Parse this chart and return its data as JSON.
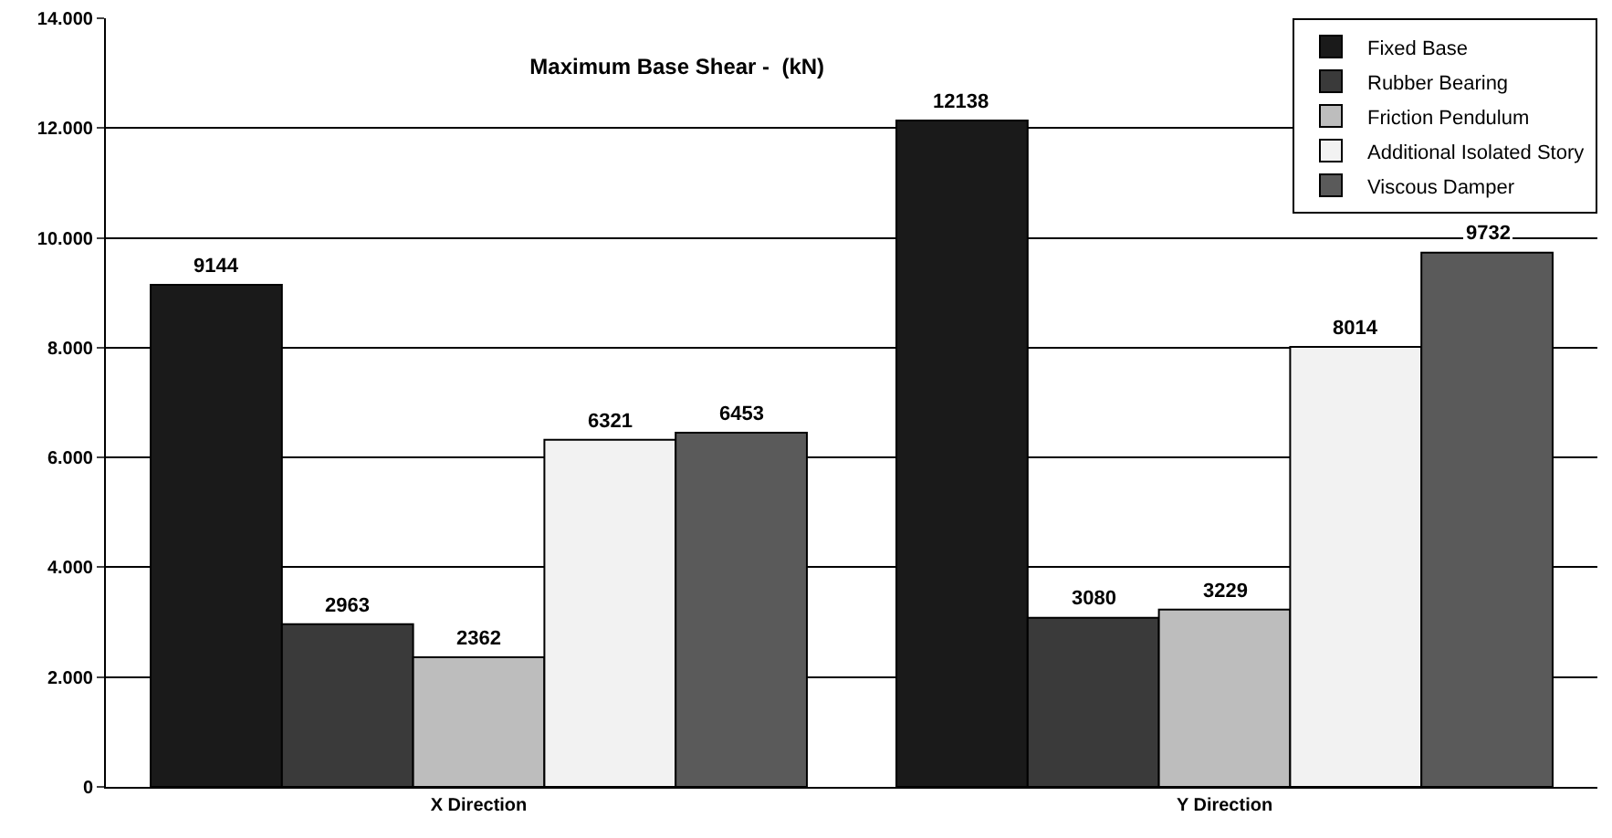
{
  "chart_data": {
    "type": "bar",
    "title": "Maximum Base Shear -  (kN)",
    "categories": [
      "X Direction",
      "Y Direction"
    ],
    "series": [
      {
        "name": "Fixed Base",
        "color": "#1a1a1a",
        "values": [
          9144,
          12138
        ]
      },
      {
        "name": "Rubber Bearing",
        "color": "#3a3a3a",
        "values": [
          2963,
          3080
        ]
      },
      {
        "name": "Friction Pendulum",
        "color": "#bdbdbd",
        "values": [
          2362,
          3229
        ]
      },
      {
        "name": "Additional Isolated Story",
        "color": "#f2f2f2",
        "values": [
          6321,
          8014
        ]
      },
      {
        "name": "Viscous Damper",
        "color": "#5a5a5a",
        "values": [
          6453,
          9732
        ]
      }
    ],
    "ylim": [
      0,
      14000
    ],
    "yticks": [
      0,
      {
        "value": 2000,
        "label": "2.000"
      },
      {
        "value": 4000,
        "label": "4.000"
      },
      {
        "value": 6000,
        "label": "6.000"
      },
      {
        "value": 8000,
        "label": "8.000"
      },
      {
        "value": 10000,
        "label": "10.000"
      },
      {
        "value": 12000,
        "label": "12.000"
      },
      {
        "value": 14000,
        "label": "14.000"
      }
    ],
    "grid": "y",
    "legend": "top right",
    "data_labels": true
  }
}
